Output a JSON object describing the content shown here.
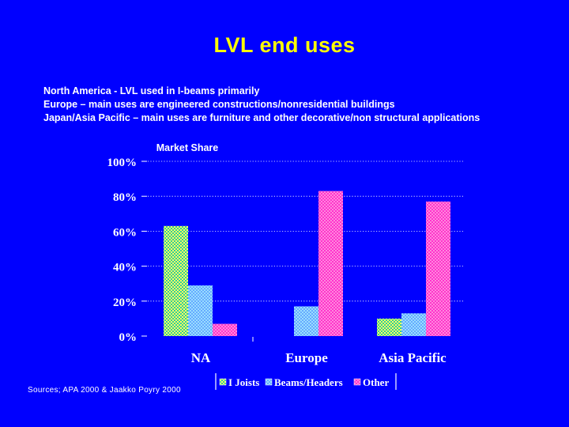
{
  "title": "LVL end uses",
  "notes": [
    "North America -  LVL used in I-beams primarily",
    "Europe –  main uses are engineered constructions/nonresidential buildings",
    "Japan/Asia Pacific – main uses are furniture and other decorative/non structural applications"
  ],
  "source": "Sources; APA 2000 & Jaakko Poyry 2000",
  "chart_data": {
    "type": "bar",
    "title": "Market Share",
    "categories": [
      "NA",
      "Europe",
      "Asia Pacific"
    ],
    "series": [
      {
        "name": "I Joists",
        "values": [
          63,
          0,
          10
        ],
        "color": "#ffff66"
      },
      {
        "name": "Beams/Headers",
        "values": [
          29,
          17,
          13
        ],
        "color": "#66aaff"
      },
      {
        "name": "Other",
        "values": [
          7,
          83,
          77
        ],
        "color": "#ff33cc"
      }
    ],
    "yticks": [
      "0%",
      "20%",
      "40%",
      "60%",
      "80%",
      "100%"
    ],
    "ylim": [
      0,
      100
    ],
    "grid": true,
    "legend": "bottom"
  }
}
